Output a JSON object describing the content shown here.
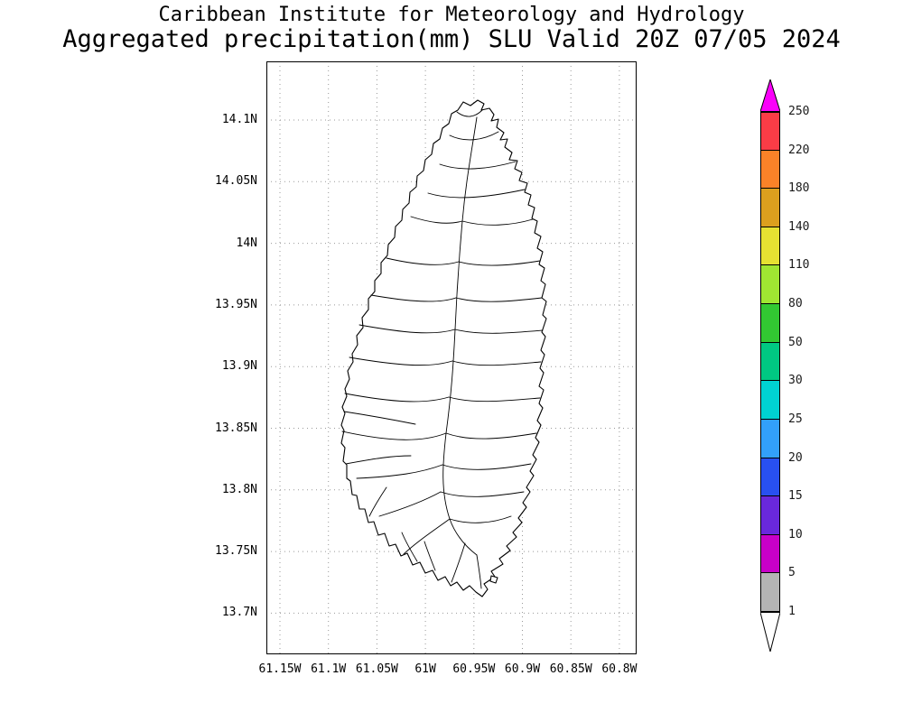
{
  "header": {
    "line1": "Caribbean Institute for Meteorology and Hydrology",
    "line2": "Aggregated precipitation(mm) SLU Valid 20Z 07/05 2024"
  },
  "map": {
    "lat_ticks": [
      "14.1N",
      "14.05N",
      "14N",
      "13.95N",
      "13.9N",
      "13.85N",
      "13.8N",
      "13.75N",
      "13.7N"
    ],
    "lon_ticks": [
      "61.15W",
      "61.1W",
      "61.05W",
      "61W",
      "60.95W",
      "60.9W",
      "60.85W",
      "60.8W"
    ]
  },
  "colorbar": {
    "labels_top_to_bottom": [
      "250",
      "220",
      "180",
      "140",
      "110",
      "80",
      "50",
      "30",
      "25",
      "20",
      "15",
      "10",
      "5",
      "1"
    ],
    "segment_colors_top_to_bottom": [
      "#fa3c46",
      "#fa8228",
      "#dc9f1e",
      "#e6e132",
      "#a0e632",
      "#32c832",
      "#00c882",
      "#00d2d2",
      "#32a0fa",
      "#2850f0",
      "#6928dc",
      "#c800c8",
      "#b4b4b4"
    ],
    "top_arrow_color": "#fa00fa",
    "bottom_arrow_color": "#ffffff",
    "units": "mm"
  }
}
